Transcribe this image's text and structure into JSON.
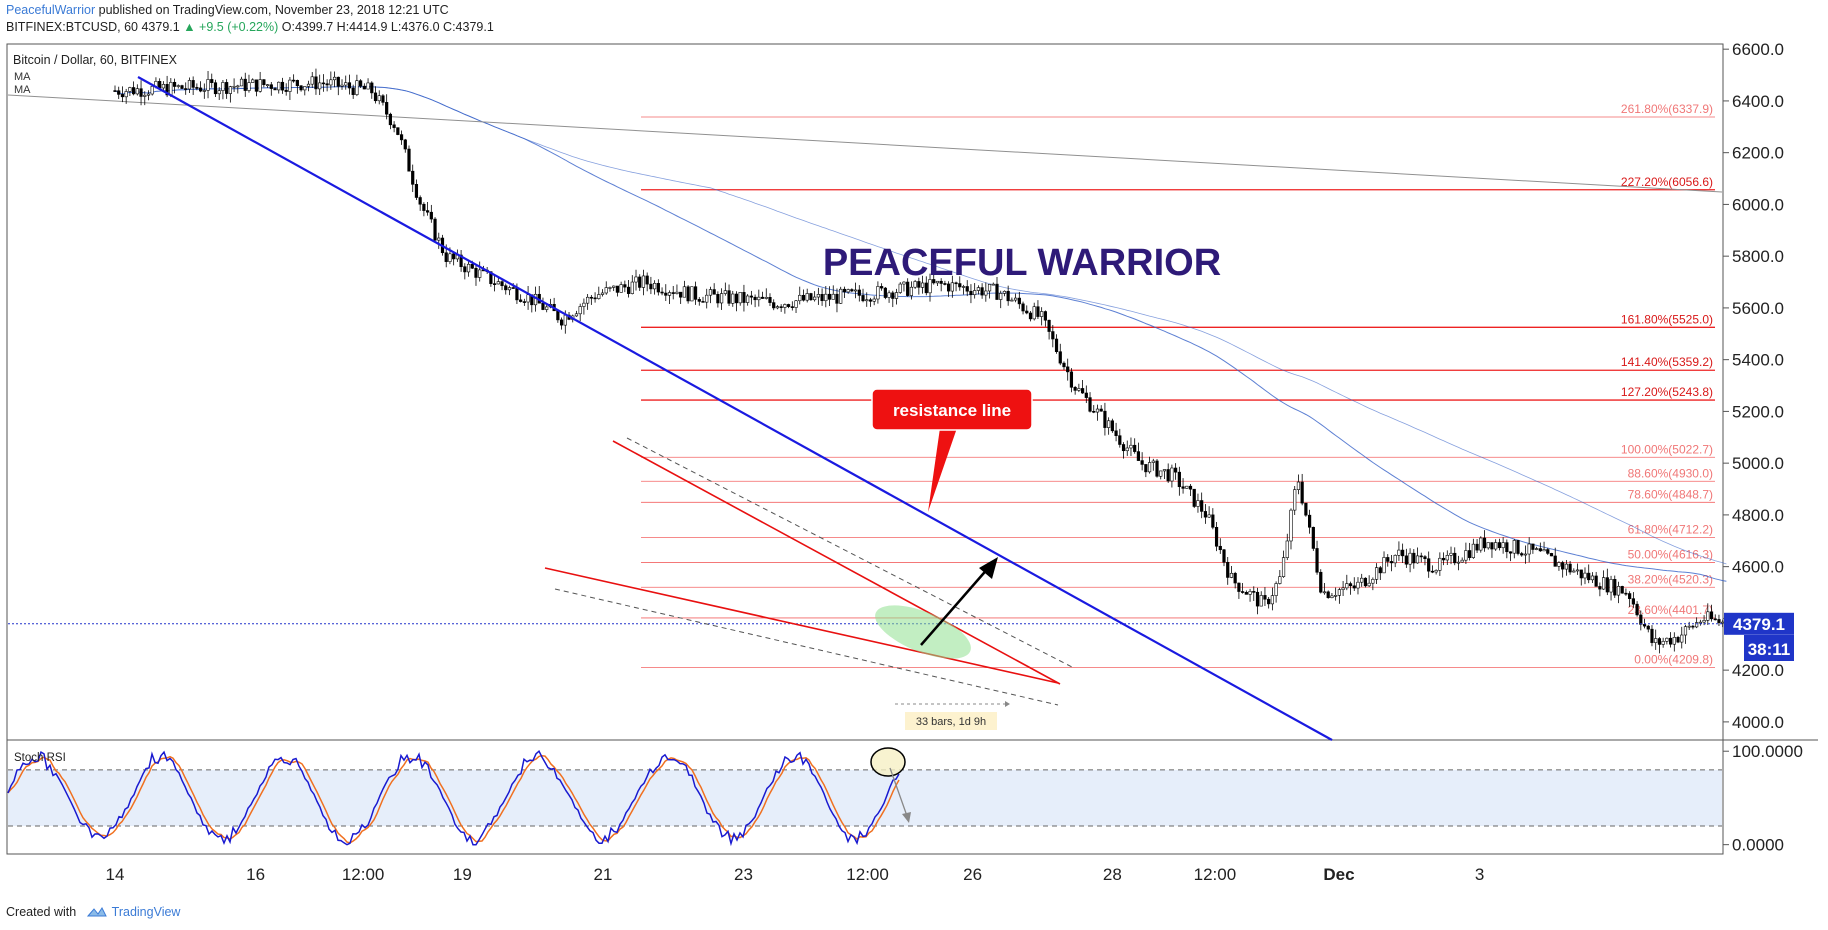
{
  "header": {
    "author": "PeacefulWarrior",
    "published_text": "published on TradingView.com, November 23, 2018 12:21 UTC",
    "symbol": "BITFINEX:BTCUSD, 60",
    "last": "4379.1",
    "change": "+9.5 (+0.22%)",
    "open": "O:4399.7",
    "high": "H:4414.9",
    "low": "L:4376.0",
    "close": "C:4379.1"
  },
  "pane_title": "Bitcoin / Dollar, 60, BITFINEX",
  "ma_labels": [
    "MA",
    "MA"
  ],
  "watermark": "PEACEFUL WARRIOR",
  "annotation": "resistance line",
  "price_tag": "4379.1",
  "countdown": "38:11",
  "bars_label": "33 bars, 1d 9h",
  "indicator_label": "Stoch RSI",
  "footer": {
    "created_with": "Created with",
    "brand": "TradingView"
  },
  "colors": {
    "candle_up": "#ffffff",
    "candle_down": "#000000",
    "trend_blue": "#1a1ae0",
    "wedge_red": "#e81010",
    "fib_red": "#ee2222",
    "watermark": "#2e1a78",
    "rsi_k": "#1a1ad0",
    "rsi_d": "#f07020"
  },
  "chart_data": [
    {
      "type": "candlestick",
      "title": "Bitcoin / Dollar, 60, BITFINEX",
      "x_ticks": [
        "14",
        "16",
        "12:00",
        "19",
        "21",
        "23",
        "12:00",
        "26",
        "28",
        "12:00",
        "Dec",
        "3"
      ],
      "y_ticks": [
        "6600.0",
        "6400.0",
        "6200.0",
        "6000.0",
        "5800.0",
        "5600.0",
        "5400.0",
        "5200.0",
        "5000.0",
        "4800.0",
        "4600.0",
        "4400.0",
        "4200.0",
        "4000.0"
      ],
      "ylim": [
        3930,
        6620
      ],
      "close_path": [
        {
          "x": 0.0,
          "y": 6440
        },
        {
          "x": 1.5,
          "y": 6460
        },
        {
          "x": 2.5,
          "y": 6470
        },
        {
          "x": 3.1,
          "y": 6440
        },
        {
          "x": 3.4,
          "y": 6300
        },
        {
          "x": 3.7,
          "y": 6000
        },
        {
          "x": 4.0,
          "y": 5800
        },
        {
          "x": 4.3,
          "y": 5750
        },
        {
          "x": 4.6,
          "y": 5700
        },
        {
          "x": 5.0,
          "y": 5640
        },
        {
          "x": 5.4,
          "y": 5560
        },
        {
          "x": 5.8,
          "y": 5650
        },
        {
          "x": 6.4,
          "y": 5700
        },
        {
          "x": 7.0,
          "y": 5650
        },
        {
          "x": 8.0,
          "y": 5620
        },
        {
          "x": 9.0,
          "y": 5650
        },
        {
          "x": 10.0,
          "y": 5690
        },
        {
          "x": 10.7,
          "y": 5660
        },
        {
          "x": 11.2,
          "y": 5560
        },
        {
          "x": 11.6,
          "y": 5300
        },
        {
          "x": 12.0,
          "y": 5150
        },
        {
          "x": 12.4,
          "y": 5000
        },
        {
          "x": 12.8,
          "y": 4950
        },
        {
          "x": 13.2,
          "y": 4800
        },
        {
          "x": 13.5,
          "y": 4550
        },
        {
          "x": 13.9,
          "y": 4450
        },
        {
          "x": 14.1,
          "y": 4560
        },
        {
          "x": 14.3,
          "y": 4950
        },
        {
          "x": 14.6,
          "y": 4500
        },
        {
          "x": 15.0,
          "y": 4520
        },
        {
          "x": 15.5,
          "y": 4650
        },
        {
          "x": 16.0,
          "y": 4600
        },
        {
          "x": 16.6,
          "y": 4700
        },
        {
          "x": 17.2,
          "y": 4650
        },
        {
          "x": 17.8,
          "y": 4560
        },
        {
          "x": 18.3,
          "y": 4500
        },
        {
          "x": 18.6,
          "y": 4300
        },
        {
          "x": 18.9,
          "y": 4330
        },
        {
          "x": 19.2,
          "y": 4400
        },
        {
          "x": 19.5,
          "y": 4380
        }
      ],
      "fibonacci": [
        {
          "label": "261.80%(6337.9)",
          "value": 6337.9
        },
        {
          "label": "227.20%(6056.6)",
          "value": 6056.6
        },
        {
          "label": "161.80%(5525.0)",
          "value": 5525.0
        },
        {
          "label": "141.40%(5359.2)",
          "value": 5359.2
        },
        {
          "label": "127.20%(5243.8)",
          "value": 5243.8
        },
        {
          "label": "100.00%(5022.7)",
          "value": 5022.7
        },
        {
          "label": "88.60%(4930.0)",
          "value": 4930.0
        },
        {
          "label": "78.60%(4848.7)",
          "value": 4848.7
        },
        {
          "label": "61.80%(4712.2)",
          "value": 4712.2
        },
        {
          "label": "50.00%(4616.3)",
          "value": 4616.3
        },
        {
          "label": "38.20%(4520.3)",
          "value": 4520.3
        },
        {
          "label": "23.60%(4401.7)",
          "value": 4401.7
        },
        {
          "label": "0.00%(4209.8)",
          "value": 4209.8
        }
      ],
      "current_price": 4379.1
    },
    {
      "type": "line",
      "title": "Stoch RSI",
      "y_ticks": [
        "100.0000",
        "0.0000"
      ],
      "ylim": [
        -10,
        112
      ],
      "levels": [
        80,
        20
      ]
    }
  ]
}
